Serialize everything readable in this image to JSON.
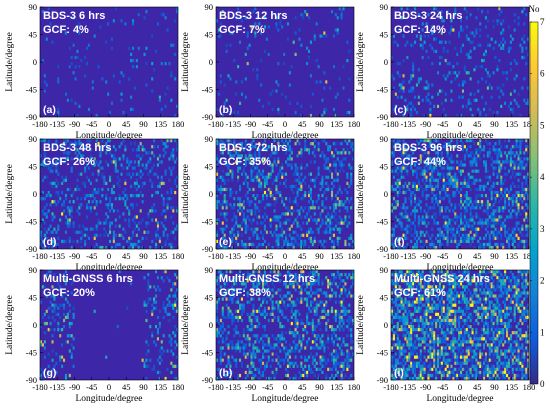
{
  "figure": {
    "x_axis_label": "Longitude/degree",
    "y_axis_label": "Latitude/degree",
    "x_ticks": [
      -180,
      -135,
      -90,
      -45,
      0,
      45,
      90,
      135,
      180
    ],
    "y_ticks": [
      90,
      45,
      0,
      -45,
      -90
    ],
    "background_color": "#3e26a8",
    "colorbar": {
      "label": "No",
      "ticks": [
        0,
        1,
        2,
        3,
        4,
        5,
        6,
        7
      ],
      "range": [
        0,
        7
      ],
      "colormap": "parula",
      "stops": [
        "#352a87",
        "#0f5cdd",
        "#1481d6",
        "#06a4ca",
        "#2eb7a4",
        "#87bf77",
        "#d1bb59",
        "#fec832",
        "#f9fb0e"
      ]
    }
  },
  "chart_data": [
    {
      "type": "heatmap",
      "title": "BDS-3 6 hrs",
      "gcf": "GCF: 4%",
      "tag": "(a)",
      "density": 0.04,
      "mean_value": 1.0,
      "xlim": [
        -180,
        180
      ],
      "ylim": [
        -90,
        90
      ]
    },
    {
      "type": "heatmap",
      "title": "BDS-3 12 hrs",
      "gcf": "GCF: 7%",
      "tag": "(b)",
      "density": 0.07,
      "mean_value": 1.2,
      "xlim": [
        -180,
        180
      ],
      "ylim": [
        -90,
        90
      ]
    },
    {
      "type": "heatmap",
      "title": "BDS-3 24 hrs",
      "gcf": "GCF: 14%",
      "tag": "(c)",
      "density": 0.14,
      "mean_value": 1.3,
      "xlim": [
        -180,
        180
      ],
      "ylim": [
        -90,
        90
      ]
    },
    {
      "type": "heatmap",
      "title": "BDS-3 48 hrs",
      "gcf": "GCF: 26%",
      "tag": "(d)",
      "density": 0.26,
      "mean_value": 1.5,
      "xlim": [
        -180,
        180
      ],
      "ylim": [
        -90,
        90
      ]
    },
    {
      "type": "heatmap",
      "title": "BDS-3 72 hrs",
      "gcf": "GCF: 35%",
      "tag": "(e)",
      "density": 0.35,
      "mean_value": 1.6,
      "xlim": [
        -180,
        180
      ],
      "ylim": [
        -90,
        90
      ]
    },
    {
      "type": "heatmap",
      "title": "BDS-3 96 hrs",
      "gcf": "GCF: 44%",
      "tag": "(f)",
      "density": 0.44,
      "mean_value": 1.7,
      "xlim": [
        -180,
        180
      ],
      "ylim": [
        -90,
        90
      ]
    },
    {
      "type": "heatmap",
      "title": "Multi-GNSS 6 hrs",
      "gcf": "GCF: 20%",
      "tag": "(g)",
      "density": 0.2,
      "mean_value": 1.8,
      "xlim": [
        -180,
        180
      ],
      "ylim": [
        -90,
        90
      ],
      "empty_lon_range": [
        -90,
        90
      ]
    },
    {
      "type": "heatmap",
      "title": "Multi-GNSS 12 hrs",
      "gcf": "GCF: 38%",
      "tag": "(h)",
      "density": 0.38,
      "mean_value": 2.0,
      "xlim": [
        -180,
        180
      ],
      "ylim": [
        -90,
        90
      ]
    },
    {
      "type": "heatmap",
      "title": "Multi-GNSS 24 hrs",
      "gcf": "GCF: 61%",
      "tag": "(i)",
      "density": 0.61,
      "mean_value": 2.5,
      "xlim": [
        -180,
        180
      ],
      "ylim": [
        -90,
        90
      ]
    }
  ]
}
